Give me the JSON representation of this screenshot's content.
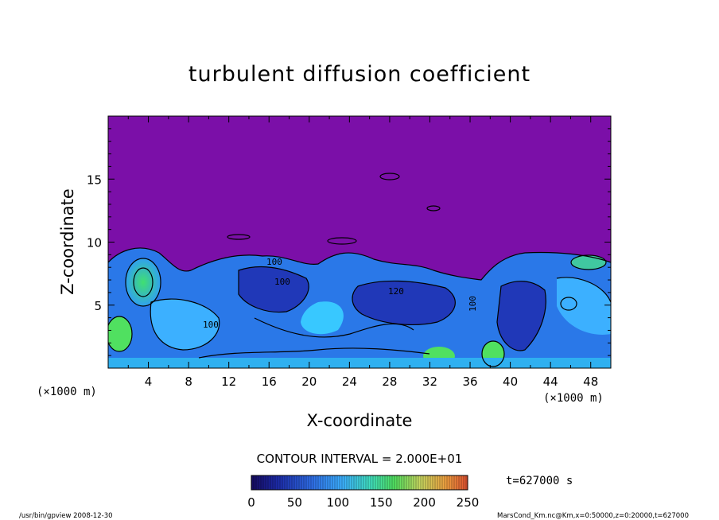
{
  "chart_data": {
    "type": "heatmap",
    "title": "turbulent diffusion coefficient",
    "xlabel": "X-coordinate",
    "ylabel": "Z-coordinate",
    "x_unit": "(×1000 m)",
    "y_unit": "(×1000 m)",
    "xlim": [
      0,
      50
    ],
    "ylim": [
      0,
      20
    ],
    "xticks": [
      4,
      8,
      12,
      16,
      20,
      24,
      28,
      32,
      36,
      40,
      44,
      48
    ],
    "yticks": [
      5,
      10,
      15
    ],
    "contour_interval_text": "CONTOUR INTERVAL = 2.000E+01",
    "contour_labels": [
      "100",
      "100",
      "100",
      "120",
      "100"
    ],
    "colorbar": {
      "min": 0,
      "max": 250,
      "ticks": [
        0,
        50,
        100,
        150,
        200,
        250
      ],
      "colors": [
        "#1a0a6e",
        "#2040d8",
        "#3aa0ff",
        "#40e0c0",
        "#50e060",
        "#c8e050",
        "#f0a040",
        "#e05030"
      ]
    },
    "background_color": "#7b0fa8",
    "time_label": "t=627000 s"
  },
  "footer": {
    "left": "/usr/bin/gpview   2008-12-30",
    "right": "MarsCond_Km.nc@Km,x=0:50000,z=0:20000,t=627000"
  }
}
